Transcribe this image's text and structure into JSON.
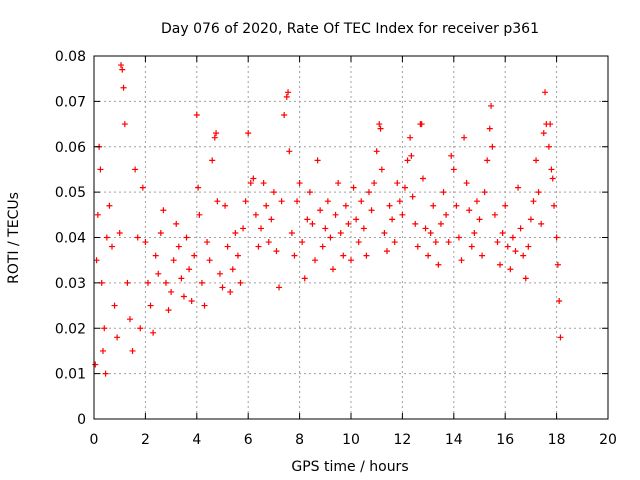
{
  "chart_data": {
    "type": "scatter",
    "title": "Day 076 of 2020, Rate Of TEC Index for receiver p361",
    "xlabel": "GPS time / hours",
    "ylabel": "ROTI / TECUs",
    "xlim": [
      0,
      20
    ],
    "ylim": [
      0,
      0.08
    ],
    "x_ticks": [
      "0",
      "2",
      "4",
      "6",
      "8",
      "10",
      "12",
      "14",
      "16",
      "18",
      "20"
    ],
    "y_ticks": [
      "0",
      "0.01",
      "0.02",
      "0.03",
      "0.04",
      "0.05",
      "0.06",
      "0.07",
      "0.08"
    ],
    "grid": true,
    "marker": "+",
    "color": "#ff0000",
    "series": [
      {
        "points": [
          [
            0.05,
            0.012
          ],
          [
            0.1,
            0.035
          ],
          [
            0.15,
            0.045
          ],
          [
            0.2,
            0.06
          ],
          [
            0.25,
            0.055
          ],
          [
            0.3,
            0.03
          ],
          [
            0.35,
            0.015
          ],
          [
            0.4,
            0.02
          ],
          [
            0.45,
            0.01
          ],
          [
            0.5,
            0.04
          ],
          [
            0.6,
            0.047
          ],
          [
            0.7,
            0.038
          ],
          [
            0.8,
            0.025
          ],
          [
            0.9,
            0.018
          ],
          [
            1.0,
            0.041
          ],
          [
            1.05,
            0.078
          ],
          [
            1.1,
            0.077
          ],
          [
            1.15,
            0.073
          ],
          [
            1.2,
            0.065
          ],
          [
            1.3,
            0.03
          ],
          [
            1.4,
            0.022
          ],
          [
            1.5,
            0.015
          ],
          [
            1.6,
            0.055
          ],
          [
            1.7,
            0.04
          ],
          [
            1.8,
            0.02
          ],
          [
            1.9,
            0.051
          ],
          [
            2.0,
            0.039
          ],
          [
            2.1,
            0.03
          ],
          [
            2.2,
            0.025
          ],
          [
            2.3,
            0.019
          ],
          [
            2.4,
            0.036
          ],
          [
            2.5,
            0.032
          ],
          [
            2.6,
            0.041
          ],
          [
            2.7,
            0.046
          ],
          [
            2.8,
            0.03
          ],
          [
            2.9,
            0.024
          ],
          [
            3.0,
            0.028
          ],
          [
            3.1,
            0.035
          ],
          [
            3.2,
            0.043
          ],
          [
            3.3,
            0.038
          ],
          [
            3.4,
            0.031
          ],
          [
            3.5,
            0.027
          ],
          [
            3.6,
            0.04
          ],
          [
            3.7,
            0.033
          ],
          [
            3.8,
            0.026
          ],
          [
            3.9,
            0.036
          ],
          [
            4.0,
            0.067
          ],
          [
            4.05,
            0.051
          ],
          [
            4.1,
            0.045
          ],
          [
            4.2,
            0.03
          ],
          [
            4.3,
            0.025
          ],
          [
            4.4,
            0.039
          ],
          [
            4.5,
            0.035
          ],
          [
            4.6,
            0.057
          ],
          [
            4.7,
            0.062
          ],
          [
            4.75,
            0.063
          ],
          [
            4.8,
            0.048
          ],
          [
            4.9,
            0.032
          ],
          [
            5.0,
            0.029
          ],
          [
            5.1,
            0.047
          ],
          [
            5.2,
            0.038
          ],
          [
            5.3,
            0.028
          ],
          [
            5.4,
            0.033
          ],
          [
            5.5,
            0.041
          ],
          [
            5.6,
            0.036
          ],
          [
            5.7,
            0.03
          ],
          [
            5.8,
            0.042
          ],
          [
            5.9,
            0.048
          ],
          [
            6.0,
            0.063
          ],
          [
            6.1,
            0.052
          ],
          [
            6.2,
            0.053
          ],
          [
            6.3,
            0.045
          ],
          [
            6.4,
            0.038
          ],
          [
            6.5,
            0.042
          ],
          [
            6.6,
            0.052
          ],
          [
            6.7,
            0.047
          ],
          [
            6.8,
            0.039
          ],
          [
            6.9,
            0.044
          ],
          [
            7.0,
            0.05
          ],
          [
            7.1,
            0.037
          ],
          [
            7.2,
            0.029
          ],
          [
            7.3,
            0.048
          ],
          [
            7.4,
            0.067
          ],
          [
            7.5,
            0.071
          ],
          [
            7.55,
            0.072
          ],
          [
            7.6,
            0.059
          ],
          [
            7.7,
            0.041
          ],
          [
            7.8,
            0.036
          ],
          [
            7.9,
            0.048
          ],
          [
            8.0,
            0.052
          ],
          [
            8.1,
            0.039
          ],
          [
            8.2,
            0.031
          ],
          [
            8.3,
            0.044
          ],
          [
            8.4,
            0.05
          ],
          [
            8.5,
            0.043
          ],
          [
            8.6,
            0.035
          ],
          [
            8.7,
            0.057
          ],
          [
            8.8,
            0.046
          ],
          [
            8.9,
            0.038
          ],
          [
            9.0,
            0.042
          ],
          [
            9.1,
            0.048
          ],
          [
            9.2,
            0.04
          ],
          [
            9.3,
            0.033
          ],
          [
            9.4,
            0.045
          ],
          [
            9.5,
            0.052
          ],
          [
            9.6,
            0.041
          ],
          [
            9.7,
            0.036
          ],
          [
            9.8,
            0.047
          ],
          [
            9.9,
            0.043
          ],
          [
            10.0,
            0.035
          ],
          [
            10.1,
            0.051
          ],
          [
            10.2,
            0.044
          ],
          [
            10.3,
            0.039
          ],
          [
            10.4,
            0.048
          ],
          [
            10.5,
            0.042
          ],
          [
            10.6,
            0.036
          ],
          [
            10.7,
            0.05
          ],
          [
            10.8,
            0.046
          ],
          [
            10.9,
            0.052
          ],
          [
            11.0,
            0.059
          ],
          [
            11.1,
            0.065
          ],
          [
            11.15,
            0.064
          ],
          [
            11.2,
            0.055
          ],
          [
            11.3,
            0.041
          ],
          [
            11.4,
            0.037
          ],
          [
            11.5,
            0.047
          ],
          [
            11.6,
            0.044
          ],
          [
            11.7,
            0.039
          ],
          [
            11.8,
            0.052
          ],
          [
            11.9,
            0.048
          ],
          [
            12.0,
            0.045
          ],
          [
            12.1,
            0.051
          ],
          [
            12.2,
            0.057
          ],
          [
            12.3,
            0.062
          ],
          [
            12.35,
            0.058
          ],
          [
            12.4,
            0.049
          ],
          [
            12.5,
            0.043
          ],
          [
            12.6,
            0.038
          ],
          [
            12.7,
            0.065
          ],
          [
            12.75,
            0.065
          ],
          [
            12.8,
            0.053
          ],
          [
            12.9,
            0.042
          ],
          [
            13.0,
            0.036
          ],
          [
            13.1,
            0.041
          ],
          [
            13.2,
            0.047
          ],
          [
            13.3,
            0.039
          ],
          [
            13.4,
            0.034
          ],
          [
            13.5,
            0.043
          ],
          [
            13.6,
            0.05
          ],
          [
            13.7,
            0.045
          ],
          [
            13.8,
            0.039
          ],
          [
            13.9,
            0.058
          ],
          [
            14.0,
            0.055
          ],
          [
            14.1,
            0.047
          ],
          [
            14.2,
            0.04
          ],
          [
            14.3,
            0.035
          ],
          [
            14.4,
            0.062
          ],
          [
            14.5,
            0.052
          ],
          [
            14.6,
            0.046
          ],
          [
            14.7,
            0.038
          ],
          [
            14.8,
            0.041
          ],
          [
            14.9,
            0.048
          ],
          [
            15.0,
            0.044
          ],
          [
            15.1,
            0.036
          ],
          [
            15.2,
            0.05
          ],
          [
            15.3,
            0.057
          ],
          [
            15.4,
            0.064
          ],
          [
            15.45,
            0.069
          ],
          [
            15.5,
            0.06
          ],
          [
            15.6,
            0.045
          ],
          [
            15.7,
            0.039
          ],
          [
            15.8,
            0.034
          ],
          [
            15.9,
            0.041
          ],
          [
            16.0,
            0.047
          ],
          [
            16.1,
            0.038
          ],
          [
            16.2,
            0.033
          ],
          [
            16.3,
            0.04
          ],
          [
            16.4,
            0.037
          ],
          [
            16.5,
            0.051
          ],
          [
            16.6,
            0.042
          ],
          [
            16.7,
            0.036
          ],
          [
            16.8,
            0.031
          ],
          [
            16.9,
            0.038
          ],
          [
            17.0,
            0.044
          ],
          [
            17.1,
            0.048
          ],
          [
            17.2,
            0.057
          ],
          [
            17.3,
            0.05
          ],
          [
            17.4,
            0.043
          ],
          [
            17.5,
            0.063
          ],
          [
            17.55,
            0.072
          ],
          [
            17.6,
            0.065
          ],
          [
            17.7,
            0.06
          ],
          [
            17.75,
            0.065
          ],
          [
            17.8,
            0.055
          ],
          [
            17.85,
            0.053
          ],
          [
            17.9,
            0.047
          ],
          [
            18.0,
            0.04
          ],
          [
            18.05,
            0.034
          ],
          [
            18.1,
            0.026
          ],
          [
            18.15,
            0.018
          ]
        ]
      }
    ]
  }
}
